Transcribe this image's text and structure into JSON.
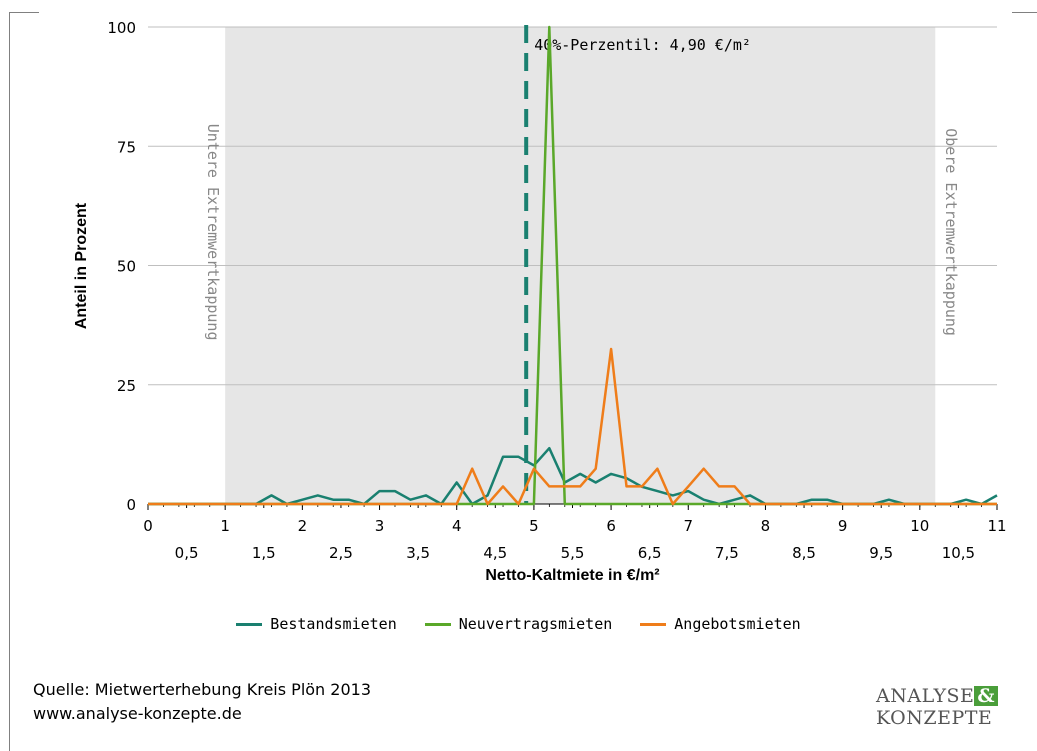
{
  "chart_data": {
    "type": "line",
    "title": "",
    "xlabel": "Netto-Kaltmiete in €/m²",
    "ylabel": "Anteil in Prozent",
    "xlim": [
      0,
      11
    ],
    "ylim": [
      0,
      100
    ],
    "x_major_ticks": [
      "0",
      "1",
      "2",
      "3",
      "4",
      "5",
      "6",
      "7",
      "8",
      "9",
      "10",
      "11"
    ],
    "x_minor_ticks": [
      "0,5",
      "1,5",
      "2,5",
      "3,5",
      "4,5",
      "5,5",
      "6,5",
      "7,5",
      "8,5",
      "9,5",
      "10,5"
    ],
    "y_ticks": [
      "0",
      "25",
      "50",
      "75",
      "100"
    ],
    "grid": true,
    "legend_position": "bottom",
    "shaded_region": {
      "x_from": 1.0,
      "x_to": 10.2
    },
    "annotations": {
      "left_region_label": "Untere Extremwertkappung",
      "right_region_label": "Obere Extremwertkappung",
      "percentile_label": "40%-Perzentil: 4,90 €/m²",
      "percentile_x": 4.9
    },
    "x": [
      0.0,
      0.2,
      0.4,
      0.6,
      0.8,
      1.0,
      1.2,
      1.4,
      1.6,
      1.8,
      2.0,
      2.2,
      2.4,
      2.6,
      2.8,
      3.0,
      3.2,
      3.4,
      3.6,
      3.8,
      4.0,
      4.2,
      4.4,
      4.6,
      4.8,
      5.0,
      5.2,
      5.4,
      5.6,
      5.8,
      6.0,
      6.2,
      6.4,
      6.6,
      6.8,
      7.0,
      7.2,
      7.4,
      7.6,
      7.8,
      8.0,
      8.2,
      8.4,
      8.6,
      8.8,
      9.0,
      9.2,
      9.4,
      9.6,
      9.8,
      10.0,
      10.2,
      10.4,
      10.6,
      10.8,
      11.0
    ],
    "series": [
      {
        "name": "Bestandsmieten",
        "color": "#1a8070",
        "values": [
          0,
          0,
          0,
          0,
          0,
          0,
          0,
          0,
          1.8,
          0,
          0.9,
          1.8,
          0.9,
          0.9,
          0,
          2.7,
          2.7,
          0.9,
          1.8,
          0,
          4.5,
          0,
          1.8,
          9.9,
          9.9,
          8.1,
          11.7,
          4.5,
          6.3,
          4.5,
          6.3,
          5.4,
          3.6,
          2.7,
          1.8,
          2.7,
          0.9,
          0,
          0.9,
          1.8,
          0,
          0,
          0,
          0.9,
          0.9,
          0,
          0,
          0,
          0.9,
          0,
          0,
          0,
          0,
          0.9,
          0,
          1.8
        ]
      },
      {
        "name": "Neuvertragsmieten",
        "color": "#5aa829",
        "values": [
          0,
          0,
          0,
          0,
          0,
          0,
          0,
          0,
          0,
          0,
          0,
          0,
          0,
          0,
          0,
          0,
          0,
          0,
          0,
          0,
          0,
          0,
          0,
          0,
          0,
          0,
          100,
          0,
          0,
          0,
          0,
          0,
          0,
          0,
          0,
          0,
          0,
          0,
          0,
          0,
          0,
          0,
          0,
          0,
          0,
          0,
          0,
          0,
          0,
          0,
          0,
          0,
          0,
          0,
          0,
          0
        ]
      },
      {
        "name": "Angebotsmieten",
        "color": "#ef7d1a",
        "values": [
          0,
          0,
          0,
          0,
          0,
          0,
          0,
          0,
          0,
          0,
          0,
          0,
          0,
          0,
          0,
          0,
          0,
          0,
          0,
          0,
          0,
          7.4,
          0,
          3.7,
          0,
          7.4,
          3.7,
          3.7,
          3.7,
          7.4,
          32.5,
          3.7,
          3.7,
          7.4,
          0,
          3.7,
          7.4,
          3.7,
          3.7,
          0,
          0,
          0,
          0,
          0,
          0,
          0,
          0,
          0,
          0,
          0,
          0,
          0,
          0,
          0,
          0,
          0
        ]
      }
    ]
  },
  "footer": {
    "source_line1": "Quelle: Mietwerterhebung Kreis Plön 2013",
    "source_line2": "www.analyse-konzepte.de",
    "logo_line1": "ANALYSE",
    "logo_amp": "&",
    "logo_line2": "KONZEPTE"
  }
}
